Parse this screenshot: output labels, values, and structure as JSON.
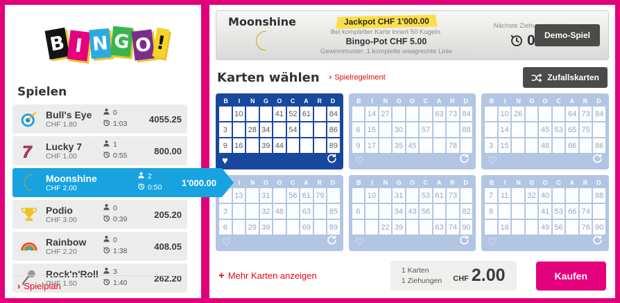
{
  "sidebar": {
    "logo_letters": [
      "B",
      "I",
      "N",
      "G",
      "O",
      "!"
    ],
    "heading": "Spielen",
    "games": [
      {
        "name": "Bull's Eye",
        "price": "CHF 1.80",
        "players": "0",
        "time": "1:03",
        "jackpot": "4055.25",
        "icon": "dartboard-icon",
        "selected": false
      },
      {
        "name": "Lucky 7",
        "price": "CHF 1.00",
        "players": "1",
        "time": "0:55",
        "jackpot": "800.00",
        "icon": "lucky7-icon",
        "selected": false
      },
      {
        "name": "Moonshine",
        "price": "CHF 2.00",
        "players": "2",
        "time": "0:50",
        "jackpot": "1'000.00",
        "icon": "moon-icon",
        "selected": true
      },
      {
        "name": "Podio",
        "price": "CHF 3.00",
        "players": "0",
        "time": "0:39",
        "jackpot": "205.20",
        "icon": "trophy-icon",
        "selected": false
      },
      {
        "name": "Rainbow",
        "price": "CHF 2.20",
        "players": "0",
        "time": "1:38",
        "jackpot": "408.05",
        "icon": "rainbow-icon",
        "selected": false
      },
      {
        "name": "Rock'n'Roll",
        "price": "CHF 1.50",
        "players": "3",
        "time": "1:40",
        "jackpot": "262.20",
        "icon": "microphone-icon",
        "selected": false
      }
    ],
    "footer_link": "Spielplan"
  },
  "header": {
    "title": "Moonshine",
    "jackpot_badge": "Jackpot CHF 1'000.00",
    "subline": "Bei kompletter Karte innert 50 Kugeln.",
    "bingo_pot": "Bingo-Pot CHF 5.00",
    "pattern": "Gewinnmuster: 1 komplette waagrechte Linie",
    "next_draw_label": "Nächste Ziehung startet in:",
    "countdown": "0:50",
    "demo_button": "Demo-Spiel"
  },
  "cards_section": {
    "heading": "Karten wählen",
    "rules_link": "Spielregelment",
    "random_button": "Zufallskarten",
    "column_letters": [
      "B",
      "I",
      "N",
      "G",
      "O",
      "C",
      "A",
      "R",
      "D"
    ],
    "cards": [
      {
        "selected": true,
        "rows": [
          [
            "",
            "10",
            "",
            "",
            "41",
            "52",
            "61",
            "",
            "84"
          ],
          [
            "3",
            "",
            "28",
            "34",
            "",
            "54",
            "",
            "",
            "86"
          ],
          [
            "9",
            "16",
            "",
            "39",
            "44",
            "",
            "",
            "",
            "89"
          ]
        ]
      },
      {
        "selected": false,
        "rows": [
          [
            "",
            "14",
            "27",
            "",
            "",
            "",
            "63",
            "73",
            "84"
          ],
          [
            "6",
            "15",
            "",
            "30",
            "",
            "57",
            "",
            "",
            "88"
          ],
          [
            "9",
            "17",
            "",
            "35",
            "45",
            "",
            "",
            "78",
            ""
          ]
        ]
      },
      {
        "selected": false,
        "rows": [
          [
            "",
            "10",
            "26",
            "",
            "",
            "",
            "64",
            "73",
            "84"
          ],
          [
            "",
            "14",
            "",
            "",
            "45",
            "53",
            "65",
            "75",
            ""
          ],
          [
            "3",
            "15",
            "",
            "",
            "48",
            "",
            "66",
            "",
            "86"
          ]
        ]
      },
      {
        "selected": false,
        "rows": [
          [
            "",
            "13",
            "",
            "31",
            "",
            "56",
            "61",
            "79",
            ""
          ],
          [
            "3",
            "",
            "",
            "32",
            "48",
            "",
            "63",
            "",
            "85"
          ],
          [
            "6",
            "",
            "29",
            "39",
            "",
            "",
            "69",
            "",
            "89"
          ]
        ]
      },
      {
        "selected": false,
        "rows": [
          [
            "",
            "10",
            "",
            "31",
            "",
            "53",
            "61",
            "73",
            ""
          ],
          [
            "6",
            "",
            "",
            "34",
            "43",
            "56",
            "",
            "",
            "82"
          ],
          [
            "",
            "",
            "22",
            "39",
            "",
            "",
            "63",
            "74",
            "90"
          ]
        ]
      },
      {
        "selected": false,
        "rows": [
          [
            "7",
            "11",
            "",
            "32",
            "40",
            "",
            "",
            "",
            "88"
          ],
          [
            "8",
            "",
            "",
            "",
            "41",
            "53",
            "66",
            "74",
            ""
          ],
          [
            "",
            "16",
            "",
            "",
            "49",
            "56",
            "",
            "76",
            "90"
          ]
        ]
      }
    ],
    "more_link": "Mehr Karten anzeigen"
  },
  "purchase": {
    "cards_count": "1 Karten",
    "draws_count": "1 Ziehungen",
    "currency": "CHF",
    "total": "2.00",
    "buy_button": "Kaufen"
  },
  "colors": {
    "brand_pink": "#e2007a",
    "selected_blue": "#18a3e0",
    "card_dark_blue": "#17489d",
    "card_light_blue": "#b2c6e4",
    "link_red": "#e30613",
    "jackpot_yellow": "#fadf4b",
    "button_gray": "#4b4b49"
  }
}
